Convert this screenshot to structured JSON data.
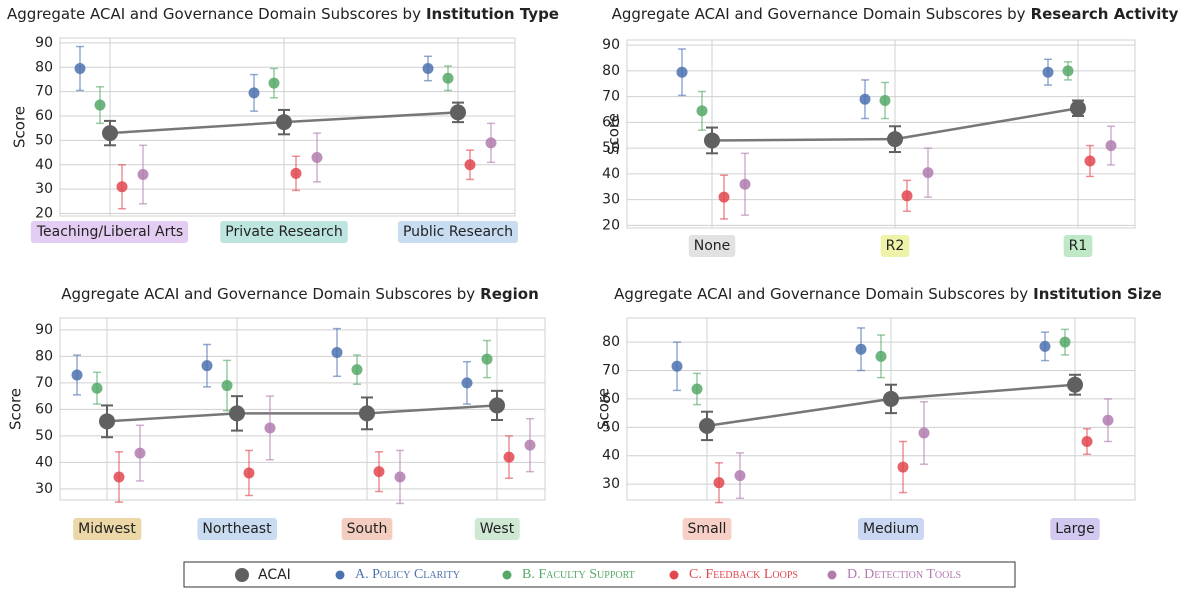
{
  "legend": [
    {
      "name": "ACAI",
      "color": "#606060"
    },
    {
      "name": "A. Policy Clarity",
      "color": "#4c72b0"
    },
    {
      "name": "B. Faculty Support",
      "color": "#55a868"
    },
    {
      "name": "C. Feedback Loops",
      "color": "#e2474f"
    },
    {
      "name": "D. Detection Tools",
      "color": "#b07cae"
    }
  ],
  "chart_data": [
    {
      "type": "pointplot",
      "title": "Aggregate ACAI and Governance Domain Subscores by",
      "title_emphasis": "Institution Type",
      "ylabel": "Score",
      "grid": true,
      "categories": [
        "Teaching/Liberal Arts",
        "Private Research",
        "Public Research"
      ],
      "category_colors": [
        "#e3cdf2",
        "#bde5df",
        "#c8dcf2"
      ],
      "ylim": [
        19,
        92
      ],
      "yticks": [
        20,
        30,
        40,
        50,
        60,
        70,
        80,
        90
      ],
      "series": [
        {
          "values": [
            53,
            57.5,
            61.5
          ],
          "errors": [
            5,
            5,
            4
          ]
        },
        {
          "values": [
            79.5,
            69.5,
            79.5
          ],
          "errors": [
            9,
            7.5,
            5
          ]
        },
        {
          "values": [
            64.5,
            73.5,
            75.5
          ],
          "errors": [
            7.5,
            6,
            5
          ]
        },
        {
          "values": [
            31,
            36.5,
            40
          ],
          "errors": [
            9,
            7,
            6
          ]
        },
        {
          "values": [
            36,
            43,
            49
          ],
          "errors": [
            12,
            10,
            8
          ]
        }
      ]
    },
    {
      "type": "pointplot",
      "title": "Aggregate ACAI and Governance Domain Subscores by",
      "title_emphasis": "Research Activity",
      "ylabel": "Score",
      "grid": true,
      "categories": [
        "None",
        "R2",
        "R1"
      ],
      "category_colors": [
        "#e2e2e2",
        "#eef3a8",
        "#bfe9c6"
      ],
      "ylim": [
        19,
        92
      ],
      "yticks": [
        20,
        30,
        40,
        50,
        60,
        70,
        80,
        90
      ],
      "series": [
        {
          "values": [
            53,
            53.5,
            65.5
          ],
          "errors": [
            5,
            5,
            3
          ]
        },
        {
          "values": [
            79.5,
            69,
            79.5
          ],
          "errors": [
            9,
            7.5,
            5
          ]
        },
        {
          "values": [
            64.5,
            68.5,
            80
          ],
          "errors": [
            7.5,
            7,
            3.5
          ]
        },
        {
          "values": [
            31,
            31.5,
            45
          ],
          "errors": [
            8.5,
            6,
            6
          ]
        },
        {
          "values": [
            36,
            40.5,
            51
          ],
          "errors": [
            12,
            9.5,
            7.5
          ]
        }
      ]
    },
    {
      "type": "pointplot",
      "title": "Aggregate ACAI and Governance Domain Subscores by",
      "title_emphasis": "Region",
      "ylabel": "Score",
      "grid": true,
      "categories": [
        "Midwest",
        "Northeast",
        "South",
        "West"
      ],
      "category_colors": [
        "#ecd8a6",
        "#c9dbf0",
        "#f3cdbf",
        "#cfe8d4"
      ],
      "ylim": [
        25.8,
        94.5
      ],
      "yticks": [
        30,
        40,
        50,
        60,
        70,
        80,
        90
      ],
      "series": [
        {
          "values": [
            55.5,
            58.5,
            58.5,
            61.5
          ],
          "errors": [
            6,
            6.5,
            6,
            5.5
          ]
        },
        {
          "values": [
            73,
            76.5,
            81.5,
            70
          ],
          "errors": [
            7.5,
            8,
            9,
            8
          ]
        },
        {
          "values": [
            68,
            69,
            75,
            79
          ],
          "errors": [
            6,
            9.5,
            5.5,
            7
          ]
        },
        {
          "values": [
            34.5,
            36,
            36.5,
            42
          ],
          "errors": [
            9.5,
            8.5,
            7.5,
            8
          ]
        },
        {
          "values": [
            43.5,
            53,
            34.5,
            46.5
          ],
          "errors": [
            10.5,
            12,
            10,
            10
          ]
        }
      ]
    },
    {
      "type": "pointplot",
      "title": "Aggregate ACAI and Governance Domain Subscores by",
      "title_emphasis": "Institution Size",
      "ylabel": "Score",
      "grid": true,
      "categories": [
        "Small",
        "Medium",
        "Large"
      ],
      "category_colors": [
        "#f6cfc6",
        "#c9d7f2",
        "#d3c8f0"
      ],
      "ylim": [
        24.4,
        88.5
      ],
      "yticks": [
        30,
        40,
        50,
        60,
        70,
        80
      ],
      "series": [
        {
          "values": [
            50.5,
            60,
            65
          ],
          "errors": [
            5,
            5,
            3.5
          ]
        },
        {
          "values": [
            71.5,
            77.5,
            78.5
          ],
          "errors": [
            8.5,
            7.5,
            5
          ]
        },
        {
          "values": [
            63.5,
            75,
            80
          ],
          "errors": [
            5.5,
            7.5,
            4.5
          ]
        },
        {
          "values": [
            30.5,
            36,
            45
          ],
          "errors": [
            7,
            9,
            4.5
          ]
        },
        {
          "values": [
            33,
            48,
            52.5
          ],
          "errors": [
            8,
            11,
            7.5
          ]
        }
      ]
    }
  ]
}
